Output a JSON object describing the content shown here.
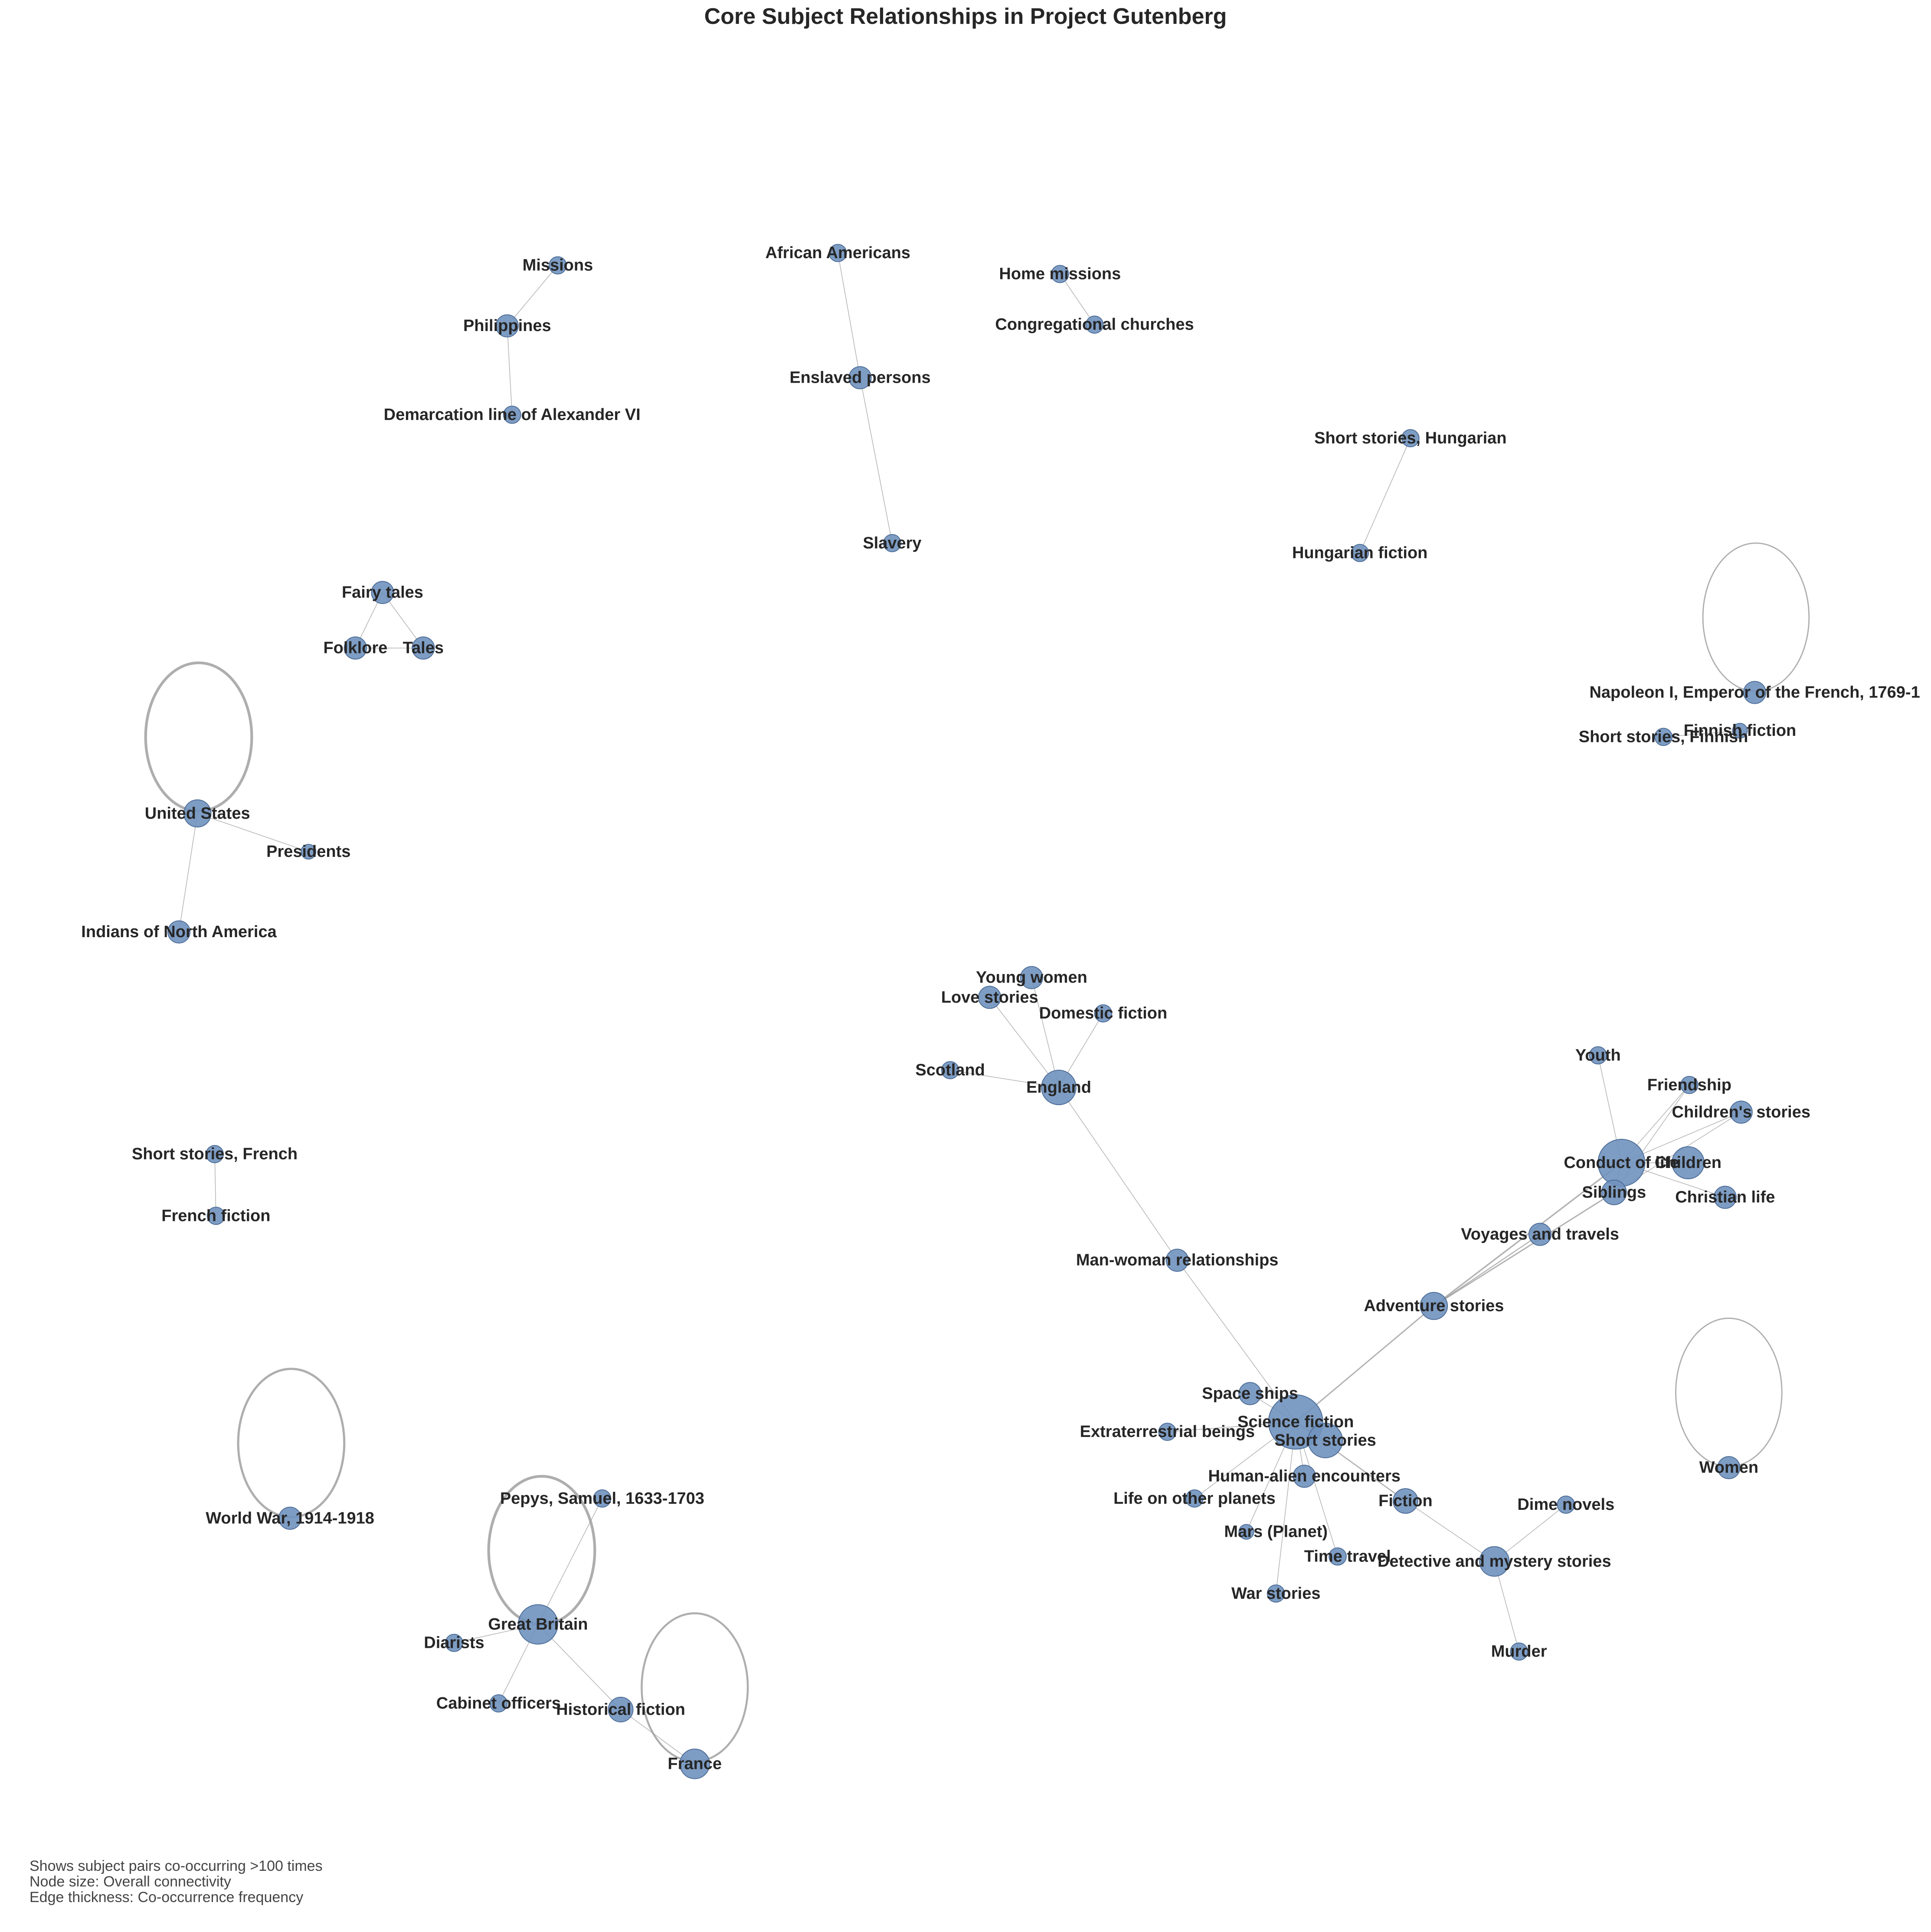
{
  "title": "Core Subject Relationships in Project Gutenberg",
  "notes": [
    "Shows subject pairs co-occurring >100 times",
    "Node size: Overall connectivity",
    "Edge thickness: Co-occurrence frequency"
  ],
  "colors": {
    "node_fill": "#7092be",
    "edge": "#9a9a9a",
    "text": "#262626"
  },
  "nodes": [
    {
      "id": "missions",
      "label": "Missions"
    },
    {
      "id": "philippines",
      "label": "Philippines"
    },
    {
      "id": "demarcation",
      "label": "Demarcation line of Alexander VI"
    },
    {
      "id": "african_americans",
      "label": "African Americans"
    },
    {
      "id": "enslaved",
      "label": "Enslaved persons"
    },
    {
      "id": "slavery",
      "label": "Slavery"
    },
    {
      "id": "home_missions",
      "label": "Home missions"
    },
    {
      "id": "congregational",
      "label": "Congregational churches"
    },
    {
      "id": "short_hungarian",
      "label": "Short stories, Hungarian"
    },
    {
      "id": "hungarian_fiction",
      "label": "Hungarian fiction"
    },
    {
      "id": "fairy_tales",
      "label": "Fairy tales"
    },
    {
      "id": "folklore",
      "label": "Folklore"
    },
    {
      "id": "tales",
      "label": "Tales"
    },
    {
      "id": "napoleon",
      "label": "Napoleon I, Emperor of the French, 1769-1"
    },
    {
      "id": "finnish_fiction",
      "label": "Finnish fiction"
    },
    {
      "id": "short_finnish",
      "label": "Short stories, Finnish"
    },
    {
      "id": "united_states",
      "label": "United States"
    },
    {
      "id": "presidents",
      "label": "Presidents"
    },
    {
      "id": "indians",
      "label": "Indians of North America"
    },
    {
      "id": "young_women",
      "label": "Young women"
    },
    {
      "id": "love_stories",
      "label": "Love stories"
    },
    {
      "id": "domestic_fiction",
      "label": "Domestic fiction"
    },
    {
      "id": "scotland",
      "label": "Scotland"
    },
    {
      "id": "england",
      "label": "England"
    },
    {
      "id": "youth",
      "label": "Youth"
    },
    {
      "id": "friendship",
      "label": "Friendship"
    },
    {
      "id": "childrens_stories",
      "label": "Children's stories"
    },
    {
      "id": "conduct",
      "label": "Conduct of life"
    },
    {
      "id": "children",
      "label": "Children"
    },
    {
      "id": "siblings",
      "label": "Siblings"
    },
    {
      "id": "christian_life",
      "label": "Christian life"
    },
    {
      "id": "short_french",
      "label": "Short stories, French"
    },
    {
      "id": "french_fiction",
      "label": "French fiction"
    },
    {
      "id": "voyages",
      "label": "Voyages and travels"
    },
    {
      "id": "man_woman",
      "label": "Man-woman relationships"
    },
    {
      "id": "adventure",
      "label": "Adventure stories"
    },
    {
      "id": "space_ships",
      "label": "Space ships"
    },
    {
      "id": "science_fiction",
      "label": "Science fiction"
    },
    {
      "id": "extraterrestrial",
      "label": "Extraterrestrial beings"
    },
    {
      "id": "short_stories",
      "label": "Short stories"
    },
    {
      "id": "human_alien",
      "label": "Human-alien encounters"
    },
    {
      "id": "life_other",
      "label": "Life on other planets"
    },
    {
      "id": "fiction",
      "label": "Fiction"
    },
    {
      "id": "dime_novels",
      "label": "Dime novels"
    },
    {
      "id": "mars",
      "label": "Mars (Planet)"
    },
    {
      "id": "time_travel",
      "label": "Time travel"
    },
    {
      "id": "detective",
      "label": "Detective and mystery stories"
    },
    {
      "id": "war_stories",
      "label": "War stories"
    },
    {
      "id": "murder",
      "label": "Murder"
    },
    {
      "id": "women",
      "label": "Women"
    },
    {
      "id": "ww1",
      "label": "World War, 1914-1918"
    },
    {
      "id": "pepys",
      "label": "Pepys, Samuel, 1633-1703"
    },
    {
      "id": "great_britain",
      "label": "Great Britain"
    },
    {
      "id": "diarists",
      "label": "Diarists"
    },
    {
      "id": "cabinet",
      "label": "Cabinet officers"
    },
    {
      "id": "historical",
      "label": "Historical fiction"
    },
    {
      "id": "france",
      "label": "France"
    }
  ],
  "edges": [
    [
      "missions",
      "philippines"
    ],
    [
      "philippines",
      "demarcation"
    ],
    [
      "african_americans",
      "enslaved"
    ],
    [
      "enslaved",
      "slavery"
    ],
    [
      "home_missions",
      "congregational"
    ],
    [
      "short_hungarian",
      "hungarian_fiction"
    ],
    [
      "fairy_tales",
      "folklore"
    ],
    [
      "fairy_tales",
      "tales"
    ],
    [
      "folklore",
      "tales"
    ],
    [
      "finnish_fiction",
      "short_finnish"
    ],
    [
      "united_states",
      "presidents"
    ],
    [
      "united_states",
      "indians"
    ],
    [
      "young_women",
      "england"
    ],
    [
      "love_stories",
      "england"
    ],
    [
      "domestic_fiction",
      "england"
    ],
    [
      "scotland",
      "england"
    ],
    [
      "england",
      "man_woman"
    ],
    [
      "man_woman",
      "science_fiction"
    ],
    [
      "youth",
      "conduct"
    ],
    [
      "friendship",
      "conduct"
    ],
    [
      "childrens_stories",
      "conduct"
    ],
    [
      "children",
      "conduct"
    ],
    [
      "siblings",
      "conduct"
    ],
    [
      "christian_life",
      "conduct"
    ],
    [
      "childrens_stories",
      "siblings"
    ],
    [
      "friendship",
      "siblings"
    ],
    [
      "short_french",
      "french_fiction"
    ],
    [
      "adventure",
      "conduct"
    ],
    [
      "adventure",
      "siblings"
    ],
    [
      "voyages",
      "adventure"
    ],
    [
      "adventure",
      "science_fiction"
    ],
    [
      "space_ships",
      "science_fiction"
    ],
    [
      "extraterrestrial",
      "science_fiction"
    ],
    [
      "short_stories",
      "science_fiction"
    ],
    [
      "human_alien",
      "science_fiction"
    ],
    [
      "life_other",
      "science_fiction"
    ],
    [
      "mars",
      "science_fiction"
    ],
    [
      "time_travel",
      "science_fiction"
    ],
    [
      "war_stories",
      "science_fiction"
    ],
    [
      "fiction",
      "science_fiction"
    ],
    [
      "fiction",
      "detective"
    ],
    [
      "dime_novels",
      "detective"
    ],
    [
      "detective",
      "murder"
    ],
    [
      "pepys",
      "great_britain"
    ],
    [
      "diarists",
      "great_britain"
    ],
    [
      "cabinet",
      "great_britain"
    ],
    [
      "historical",
      "great_britain"
    ],
    [
      "historical",
      "france"
    ]
  ],
  "self_loops": [
    "napoleon",
    "united_states",
    "women",
    "ww1",
    "great_britain",
    "france"
  ]
}
